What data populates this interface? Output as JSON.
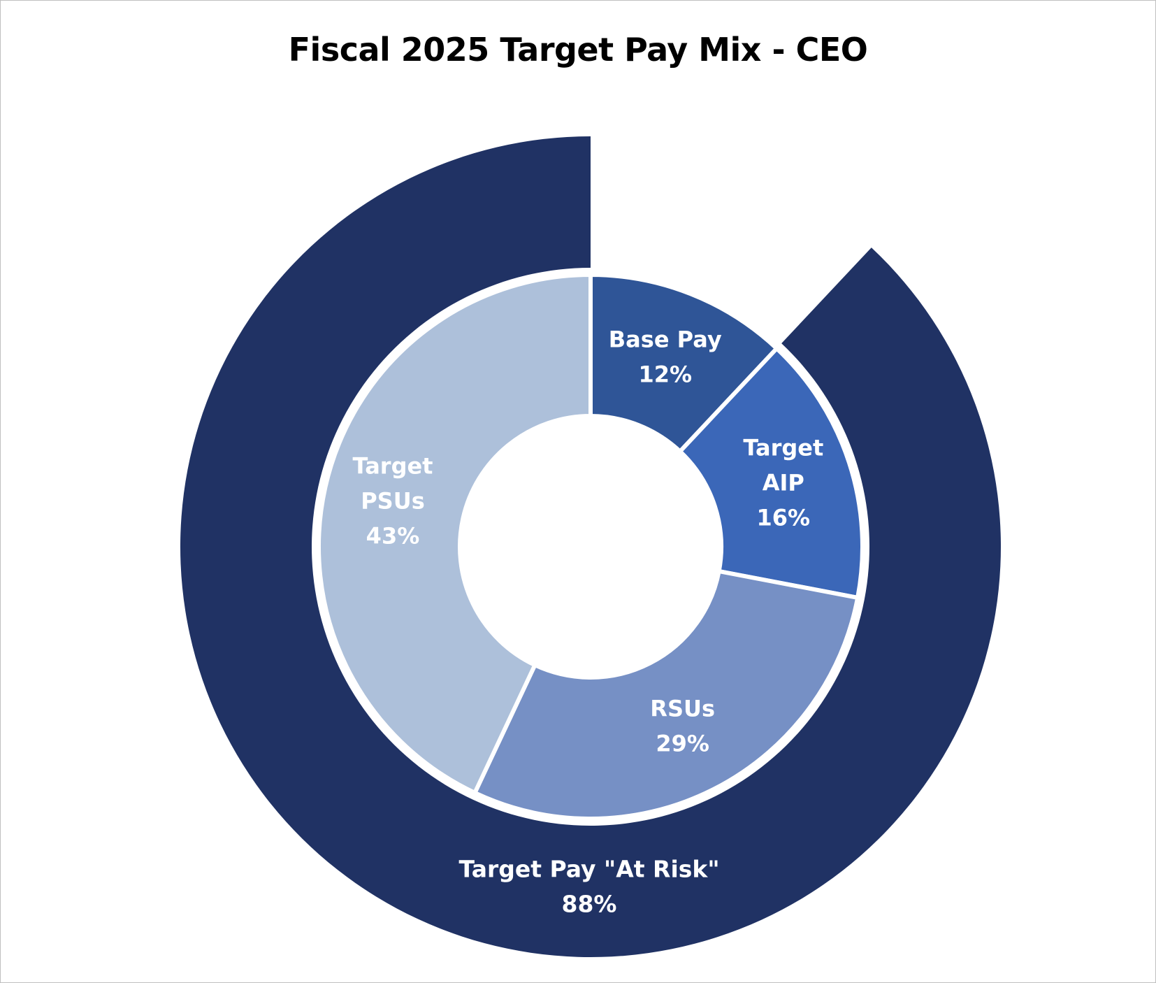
{
  "chart_data": {
    "type": "donut",
    "title": "Fiscal 2025 Target Pay Mix - CEO",
    "inner_ring": [
      {
        "name_lines": [
          "Base Pay"
        ],
        "value": 12,
        "value_label": "12%",
        "color": "#2f5597",
        "text_color": "#ffffff"
      },
      {
        "name_lines": [
          "Target",
          "AIP"
        ],
        "value": 16,
        "value_label": "16%",
        "color": "#3b67b8",
        "text_color": "#ffffff"
      },
      {
        "name_lines": [
          "RSUs"
        ],
        "value": 29,
        "value_label": "29%",
        "color": "#7690c5",
        "text_color": "#ffffff"
      },
      {
        "name_lines": [
          "Target",
          "PSUs"
        ],
        "value": 43,
        "value_label": "43%",
        "color": "#adc0da",
        "text_color": "#ffffff"
      }
    ],
    "outer_ring": [
      {
        "name_lines": [
          "",
          ""
        ],
        "value": 12,
        "value_label": "",
        "color": "none"
      },
      {
        "name_lines": [
          "Target Pay \"At Risk\""
        ],
        "value": 88,
        "value_label": "88%",
        "color": "#203264",
        "text_color": "#ffffff"
      }
    ]
  },
  "colors": {
    "background": "#ffffff",
    "frame_border": "#bfbfbf",
    "separator": "#ffffff"
  }
}
